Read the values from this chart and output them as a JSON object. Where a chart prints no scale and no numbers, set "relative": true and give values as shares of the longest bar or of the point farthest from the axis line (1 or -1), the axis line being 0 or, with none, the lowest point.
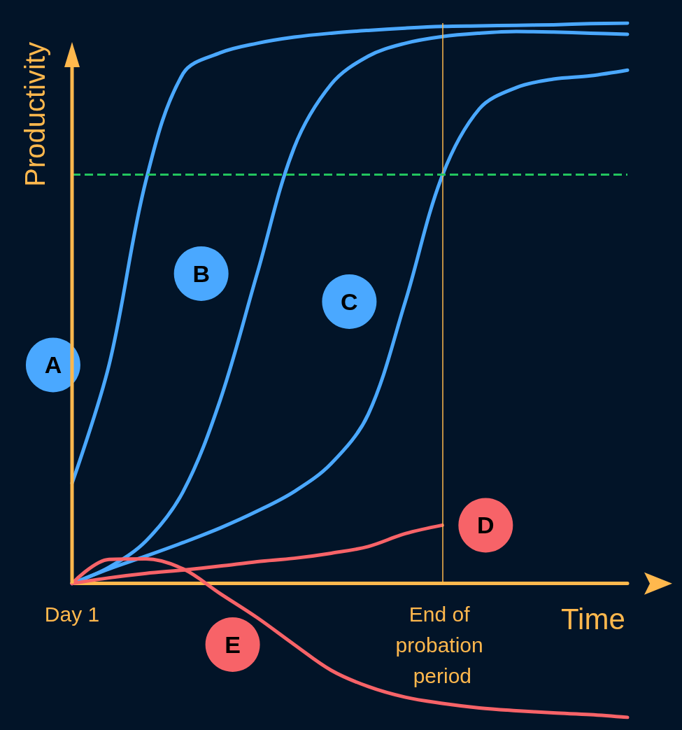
{
  "chart_data": {
    "type": "line",
    "relative": true,
    "xlabel": "Time",
    "ylabel": "Productivity",
    "categories": [
      "Day 1",
      null,
      null,
      null,
      null,
      null,
      null,
      null,
      null,
      null,
      "End of probation period",
      null,
      null,
      null,
      null,
      null
    ],
    "grid": false,
    "legend": false,
    "marker": "none",
    "line_style": "solid",
    "ref_lines": [
      {
        "axis": "x",
        "value": "End of probation period",
        "color": "#ffb84d",
        "line_style": "solid"
      },
      {
        "axis": "y",
        "value": 0.727,
        "color": "#22c55e",
        "line_style": "dashed"
      }
    ],
    "series": [
      {
        "name": "A",
        "color": "#4aa8ff",
        "values": [
          0.179,
          0.39,
          0.72,
          0.91,
          0.947,
          0.964,
          0.975,
          0.982,
          0.987,
          0.991,
          0.994,
          0.995,
          0.996,
          0.997,
          0.999,
          1.0
        ]
      },
      {
        "name": "B",
        "color": "#4aa8ff",
        "values": [
          0,
          0.029,
          0.076,
          0.164,
          0.327,
          0.553,
          0.778,
          0.891,
          0.941,
          0.964,
          0.976,
          0.982,
          0.985,
          0.984,
          0.982,
          0.98
        ]
      },
      {
        "name": "C",
        "color": "#4aa8ff",
        "values": [
          0,
          0.026,
          0.049,
          0.073,
          0.099,
          0.129,
          0.164,
          0.214,
          0.302,
          0.503,
          0.728,
          0.847,
          0.885,
          0.9,
          0.906,
          0.916
        ]
      },
      {
        "name": "D",
        "color": "#f76368",
        "values": [
          0,
          0.01,
          0.018,
          0.024,
          0.031,
          0.039,
          0.045,
          0.054,
          0.066,
          0.089,
          0.104,
          null,
          null,
          null,
          null,
          null
        ]
      },
      {
        "name": "E",
        "color": "#f76368",
        "values": [
          0,
          0.043,
          0.044,
          0.026,
          -0.018,
          -0.061,
          -0.109,
          -0.155,
          -0.184,
          -0.203,
          -0.214,
          -0.222,
          -0.227,
          -0.231,
          -0.234,
          -0.239
        ]
      }
    ]
  }
}
